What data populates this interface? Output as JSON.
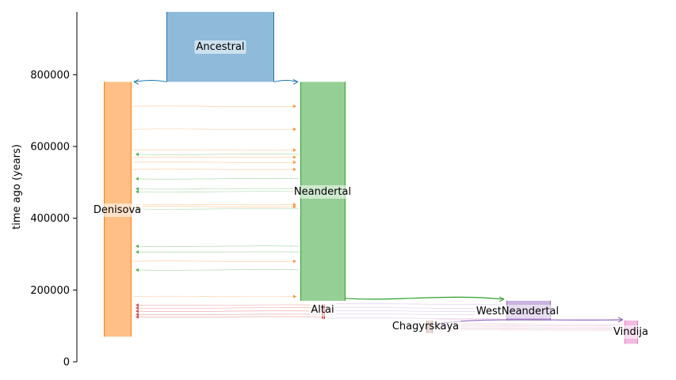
{
  "axis": {
    "ylabel": "time ago (years)",
    "ylim": [
      0,
      975000
    ],
    "ticks": [
      {
        "value": 0,
        "label": "0"
      },
      {
        "value": 200000,
        "label": "200000"
      },
      {
        "value": 400000,
        "label": "400000"
      },
      {
        "value": 600000,
        "label": "600000"
      },
      {
        "value": 800000,
        "label": "800000"
      }
    ]
  },
  "demes": [
    {
      "id": "ancestral",
      "name": "Ancestral",
      "start": 975000,
      "end": 780000,
      "color": "#1f77b4",
      "fill": "#8fbad9"
    },
    {
      "id": "denisova",
      "name": "Denisova",
      "start": 780000,
      "end": 70000,
      "color": "#ff7f0e",
      "fill": "#ffbf86"
    },
    {
      "id": "neandertal",
      "name": "Neandertal",
      "start": 780000,
      "end": 170000,
      "color": "#2ca02c",
      "fill": "#95cf95"
    },
    {
      "id": "altai",
      "name": "Altai",
      "start": 160000,
      "end": 120000,
      "color": "#d62728",
      "fill": "#ea9393"
    },
    {
      "id": "westneandertal",
      "name": "WestNeandertal",
      "start": 170000,
      "end": 115000,
      "color": "#9467bd",
      "fill": "#c9b3de"
    },
    {
      "id": "chagyrskaya",
      "name": "Chagyrskaya",
      "start": 115000,
      "end": 80000,
      "color": "#8c564b",
      "fill": "#c5aaa5"
    },
    {
      "id": "vindija",
      "name": "Vindija",
      "start": 115000,
      "end": 50000,
      "color": "#e377c2",
      "fill": "#f1bbe0"
    }
  ],
  "pulses": [
    {
      "source": "denisova",
      "dest": "neandertal",
      "time": 712000
    },
    {
      "source": "denisova",
      "dest": "neandertal",
      "time": 648000
    },
    {
      "source": "denisova",
      "dest": "neandertal",
      "time": 590000
    },
    {
      "source": "neandertal",
      "dest": "denisova",
      "time": 578000
    },
    {
      "source": "denisova",
      "dest": "neandertal",
      "time": 570000
    },
    {
      "source": "denisova",
      "dest": "neandertal",
      "time": 556000
    },
    {
      "source": "denisova",
      "dest": "neandertal",
      "time": 536000
    },
    {
      "source": "neandertal",
      "dest": "denisova",
      "time": 510000
    },
    {
      "source": "neandertal",
      "dest": "denisova",
      "time": 482000
    },
    {
      "source": "neandertal",
      "dest": "denisova",
      "time": 474000
    },
    {
      "source": "denisova",
      "dest": "neandertal",
      "time": 438000
    },
    {
      "source": "denisova",
      "dest": "neandertal",
      "time": 432000
    },
    {
      "source": "neandertal",
      "dest": "denisova",
      "time": 426000
    },
    {
      "source": "neandertal",
      "dest": "denisova",
      "time": 322000
    },
    {
      "source": "neandertal",
      "dest": "denisova",
      "time": 306000
    },
    {
      "source": "denisova",
      "dest": "neandertal",
      "time": 280000
    },
    {
      "source": "neandertal",
      "dest": "denisova",
      "time": 256000
    },
    {
      "source": "denisova",
      "dest": "neandertal",
      "time": 182000
    },
    {
      "source": "altai",
      "dest": "denisova",
      "time": 158000
    },
    {
      "source": "altai",
      "dest": "denisova",
      "time": 150000
    },
    {
      "source": "altai",
      "dest": "denisova",
      "time": 141000
    },
    {
      "source": "altai",
      "dest": "denisova",
      "time": 132000
    },
    {
      "source": "altai",
      "dest": "denisova",
      "time": 125000
    }
  ],
  "ancestry": [
    {
      "from": "ancestral",
      "to": "denisova",
      "time": 780000
    },
    {
      "from": "ancestral",
      "to": "neandertal",
      "time": 780000
    },
    {
      "from": "neandertal",
      "to": "westneandertal",
      "time": 170000
    },
    {
      "from": "westneandertal",
      "to": "vindija",
      "time": 115000
    }
  ]
}
